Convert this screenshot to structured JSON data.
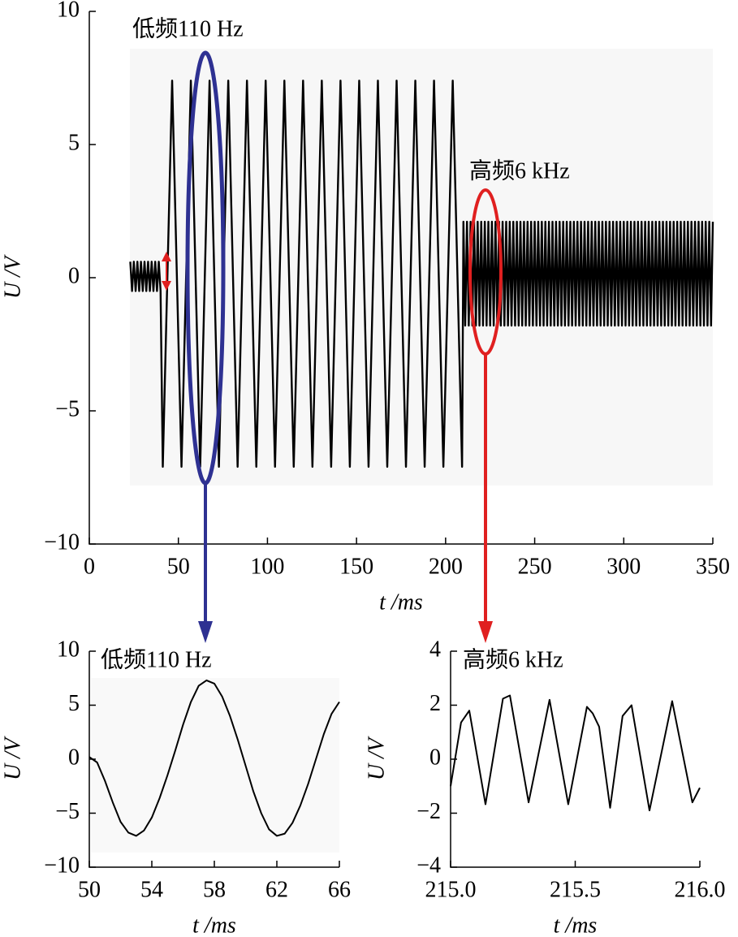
{
  "chart_data": [
    {
      "type": "line",
      "color": "#000000",
      "annotations": [
        "低频110 Hz",
        "高频6 kHz"
      ],
      "xlabel": "t /ms",
      "ylabel": "U /V",
      "xlim": [
        0,
        350
      ],
      "xticks": [
        0,
        50,
        100,
        150,
        200,
        250,
        300,
        350
      ],
      "ylim": [
        -10,
        10
      ],
      "yticks": [
        {
          "value": -10,
          "label": "−10"
        },
        {
          "value": -5,
          "label": "−5"
        },
        0,
        5,
        10
      ],
      "x": [
        23,
        24,
        25,
        26,
        27,
        28,
        29,
        30,
        31,
        32,
        33,
        34,
        35,
        36,
        37,
        38,
        39,
        40,
        41.25,
        46.5,
        51.75,
        57,
        62.25,
        67.5,
        72.75,
        78,
        83.25,
        88.5,
        93.75,
        99,
        104.25,
        109.5,
        114.75,
        120,
        125.25,
        130.5,
        135.75,
        141,
        146.25,
        151.5,
        156.75,
        162,
        167.25,
        172.5,
        177.75,
        183,
        188.25,
        193.5,
        198.75,
        204,
        209.25,
        210,
        211,
        212,
        213,
        214,
        215,
        216,
        217,
        218,
        219,
        220,
        221,
        222,
        223,
        224,
        225,
        226,
        227,
        228,
        229,
        230,
        231,
        232,
        233,
        234,
        235,
        236,
        237,
        238,
        239,
        240,
        241,
        242,
        243,
        244,
        245,
        246,
        247,
        248,
        249,
        250,
        251,
        252,
        253,
        254,
        255,
        256,
        257,
        258,
        259,
        260,
        261,
        262,
        263,
        264,
        265,
        266,
        267,
        268,
        269,
        270,
        271,
        272,
        273,
        274,
        275,
        276,
        277,
        278,
        279,
        280,
        281,
        282,
        283,
        284,
        285,
        286,
        287,
        288,
        289,
        290,
        291,
        292,
        293,
        294,
        295,
        296,
        297,
        298,
        299,
        300,
        301,
        302,
        303,
        304,
        305,
        306,
        307,
        308,
        309,
        310,
        311,
        312,
        313,
        314,
        315,
        316,
        317,
        318,
        319,
        320,
        321,
        322,
        323,
        324,
        325,
        326,
        327,
        328,
        329,
        330,
        331,
        332,
        333,
        334,
        335,
        336,
        337,
        338,
        339,
        340,
        341,
        342,
        343,
        344,
        345,
        346,
        347,
        348,
        349,
        350
      ],
      "values": [
        0.6,
        -0.5,
        0.6,
        -0.5,
        0.6,
        -0.5,
        0.6,
        -0.5,
        0.6,
        -0.5,
        0.6,
        -0.5,
        0.6,
        -0.5,
        0.6,
        -0.5,
        0.6,
        -0.5,
        -7.1,
        7.4,
        -7.1,
        7.4,
        -7.1,
        7.4,
        -7.1,
        7.4,
        -7.1,
        7.4,
        -7.1,
        7.4,
        -7.1,
        7.4,
        -7.1,
        7.4,
        -7.1,
        7.4,
        -7.1,
        7.4,
        -7.1,
        7.4,
        -7.1,
        7.4,
        -7.1,
        7.4,
        -7.1,
        7.4,
        -7.1,
        7.4,
        -7.1,
        7.4,
        -7.1,
        2.1,
        -1.8,
        2.1,
        -1.8,
        2.1,
        -1.8,
        2.1,
        -1.8,
        2.1,
        -1.8,
        2.1,
        -1.8,
        2.1,
        -1.8,
        2.1,
        -1.8,
        2.1,
        -1.8,
        2.1,
        -1.8,
        2.1,
        -1.8,
        2.1,
        -1.8,
        2.1,
        -1.8,
        2.1,
        -1.8,
        2.1,
        -1.8,
        2.1,
        -1.8,
        2.1,
        -1.8,
        2.1,
        -1.8,
        2.1,
        -1.8,
        2.1,
        -1.8,
        2.1,
        -1.8,
        2.1,
        -1.8,
        2.1,
        -1.8,
        2.1,
        -1.8,
        2.1,
        -1.8,
        2.1,
        -1.8,
        2.1,
        -1.8,
        2.1,
        -1.8,
        2.1,
        -1.8,
        2.1,
        -1.8,
        2.1,
        -1.8,
        2.1,
        -1.8,
        2.1,
        -1.8,
        2.1,
        -1.8,
        2.1,
        -1.8,
        2.1,
        -1.8,
        2.1,
        -1.8,
        2.1,
        -1.8,
        2.1,
        -1.8,
        2.1,
        -1.8,
        2.1,
        -1.8,
        2.1,
        -1.8,
        2.1,
        -1.8,
        2.1,
        -1.8,
        2.1,
        -1.8,
        2.1,
        -1.8,
        2.1,
        -1.8,
        2.1,
        -1.8,
        2.1,
        -1.8,
        2.1,
        -1.8,
        2.1,
        -1.8,
        2.1,
        -1.8,
        2.1,
        -1.8,
        2.1,
        -1.8,
        2.1,
        -1.8,
        2.1,
        -1.8,
        2.1,
        -1.8,
        2.1,
        -1.8,
        2.1,
        -1.8,
        2.1,
        -1.8,
        2.1,
        -1.8,
        2.1,
        -1.8,
        2.1,
        -1.8,
        2.1,
        -1.8,
        2.1,
        -1.8,
        2.1,
        -1.8,
        2.1,
        -1.8,
        2.1,
        -1.8,
        2.1,
        -1.8,
        2.1,
        -1.8,
        2.1
      ]
    },
    {
      "type": "line",
      "color": "#000000",
      "annotations": [
        "低频110 Hz"
      ],
      "xlabel": "t /ms",
      "ylabel": "U /V",
      "xlim": [
        50,
        66
      ],
      "xticks": [
        50,
        54,
        58,
        62,
        66
      ],
      "ylim": [
        -10,
        10
      ],
      "yticks": [
        {
          "value": -10,
          "label": "−10"
        },
        {
          "value": -5,
          "label": "−5"
        },
        0,
        5,
        10
      ],
      "x": [
        50,
        50.5,
        51,
        51.5,
        52,
        52.5,
        53,
        53.5,
        54,
        54.5,
        55,
        55.5,
        56,
        56.5,
        57,
        57.5,
        58,
        58.5,
        59,
        59.5,
        60,
        60.5,
        61,
        61.5,
        62,
        62.5,
        63,
        63.5,
        64,
        64.5,
        65,
        65.5,
        66
      ],
      "values": [
        0.2,
        -0.3,
        -2,
        -4,
        -5.8,
        -6.8,
        -7.1,
        -6.6,
        -5.4,
        -3.6,
        -1.5,
        0.8,
        3.2,
        5.3,
        6.8,
        7.3,
        7,
        5.8,
        4,
        1.8,
        -0.6,
        -3,
        -5,
        -6.5,
        -7.1,
        -6.9,
        -5.9,
        -4.3,
        -2.3,
        0,
        2.3,
        4.2,
        5.3
      ]
    },
    {
      "type": "line",
      "color": "#000000",
      "annotations": [
        "高频6 kHz"
      ],
      "xlabel": "t /ms",
      "ylabel": "U /V",
      "xlim": [
        215,
        216
      ],
      "xticks": [
        {
          "value": 215,
          "label": "215.0"
        },
        215.5,
        {
          "value": 216,
          "label": "216.0"
        }
      ],
      "ylim": [
        -4,
        4
      ],
      "yticks": [
        {
          "value": -4,
          "label": "−4"
        },
        {
          "value": -2,
          "label": "−2"
        },
        0,
        2,
        4
      ],
      "x": [
        215,
        215.042,
        215.075,
        215.14,
        215.21,
        215.238,
        215.313,
        215.397,
        215.472,
        215.547,
        215.57,
        215.596,
        215.64,
        215.69,
        215.726,
        215.798,
        215.889,
        215.97,
        216
      ],
      "values": [
        -1,
        1.36,
        1.8,
        -1.67,
        2.24,
        2.36,
        -1.6,
        2.2,
        -1.67,
        1.94,
        1.7,
        1.2,
        -1.8,
        1.6,
        2,
        -1.9,
        2.15,
        -1.6,
        -1.06
      ]
    }
  ]
}
